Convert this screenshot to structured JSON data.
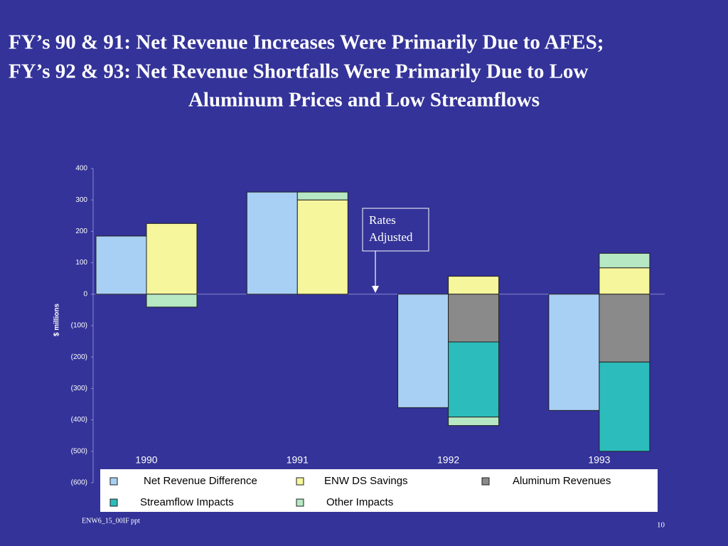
{
  "chart_data": {
    "type": "bar",
    "title": [
      "FY’s 90 & 91: Net Revenue Increases Were Primarily Due to AFES;",
      "FY’s 92 & 93: Net Revenue Shortfalls Were Primarily Due to Low",
      "Aluminum Prices and Low Streamflows"
    ],
    "ylabel": "$ millions",
    "categories": [
      "1990",
      "1991",
      "1992",
      "1993"
    ],
    "series": [
      {
        "name": "Net Revenue Difference",
        "color": "#a8d0f4",
        "values": [
          185,
          325,
          -361,
          -370
        ]
      },
      {
        "name": "ENW DS Savings",
        "color": "#f6f69c",
        "values": [
          225,
          300,
          57,
          84
        ]
      },
      {
        "name": "Aluminum Revenues",
        "color": "#8a8a8a",
        "values": [
          null,
          null,
          -152,
          -216
        ]
      },
      {
        "name": "Streamflow Impacts",
        "color": "#2cbcbc",
        "values": [
          null,
          null,
          -239,
          -284
        ]
      },
      {
        "name": "Other Impacts",
        "color": "#b6e8c4",
        "values": [
          -41,
          25,
          -27,
          46
        ]
      }
    ],
    "ylim": [
      -600,
      400
    ],
    "yticks": [
      400,
      300,
      200,
      100,
      0,
      {
        "value": -100,
        "label": "(100)"
      },
      {
        "value": -200,
        "label": "(200)"
      },
      {
        "value": -300,
        "label": "(300)"
      },
      {
        "value": -400,
        "label": "(400)"
      },
      {
        "value": -500,
        "label": "(500)"
      },
      {
        "value": -600,
        "label": "(600)"
      }
    ],
    "annotation": [
      "Rates",
      "Adjusted"
    ]
  },
  "footer": "ENW6_15_00IF ppt",
  "page_number": "10"
}
